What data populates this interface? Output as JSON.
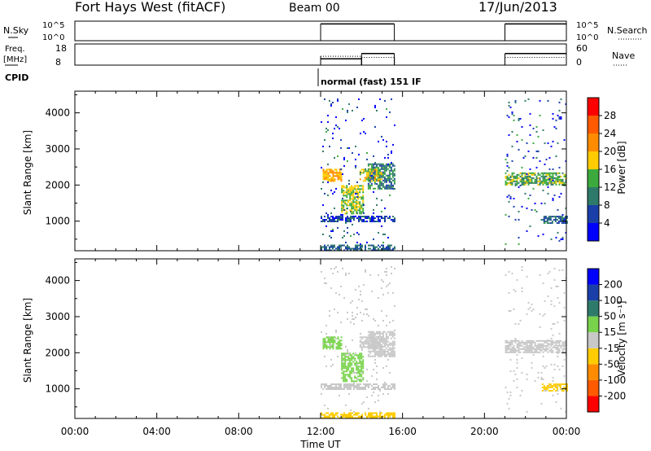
{
  "header": {
    "station": "Fort Hays West (fitACF)",
    "beam": "Beam 00",
    "date": "17/Jun/2013"
  },
  "aux": {
    "nsky_label": "N.Sky",
    "nsky_ticks": [
      "10^5",
      "10^0"
    ],
    "freq_label_1": "Freq.",
    "freq_label_2": "[MHz]",
    "freq_ticks": [
      "18",
      "8"
    ],
    "nave_ticks": [
      "60",
      "0"
    ],
    "nsearch_label": "N.Search",
    "nave_label": "Nave",
    "cpid_label": "CPID",
    "cpid_text": "normal (fast) 151 IF"
  },
  "colors": {
    "power": [
      "#0000ff",
      "#1a3fa8",
      "#2e7a6a",
      "#3caa3c",
      "#ffcc00",
      "#ff8c00",
      "#ff5a00",
      "#ff0000"
    ],
    "velocity": [
      "#ff0000",
      "#ff5a00",
      "#ff8c00",
      "#ffcc00",
      "#c8c8c8",
      "#78d24b",
      "#2e7a6a",
      "#1a3fa8",
      "#0000ff"
    ]
  },
  "chart_data": [
    {
      "type": "heatmap",
      "name": "power",
      "ylabel": "Slant Range [km]",
      "xlabel": "",
      "xlim": [
        0,
        24
      ],
      "ylim": [
        180,
        4600
      ],
      "yticks": [
        1000,
        2000,
        3000,
        4000
      ],
      "colorbar_label": "Power [dB]",
      "colorbar_ticks": [
        "4",
        "8",
        "12",
        "16",
        "20",
        "24",
        "28"
      ],
      "colorbar_range": [
        0,
        30
      ],
      "regions": [
        {
          "x": [
            12.0,
            15.6
          ],
          "y": [
            1000,
            1150
          ],
          "value": 6
        },
        {
          "x": [
            14.3,
            15.6
          ],
          "y": [
            1900,
            2600
          ],
          "value": 10
        },
        {
          "x": [
            12.1,
            13.0
          ],
          "y": [
            2100,
            2450
          ],
          "value": 20
        },
        {
          "x": [
            13.0,
            14.1
          ],
          "y": [
            1200,
            2000
          ],
          "value": 16
        },
        {
          "x": [
            13.9,
            15.0
          ],
          "y": [
            2100,
            2450
          ],
          "value": 18
        },
        {
          "x": [
            12.0,
            15.6
          ],
          "y": [
            200,
            350
          ],
          "value": 8
        },
        {
          "x": [
            21.0,
            24.0
          ],
          "y": [
            2000,
            2350
          ],
          "value": 14
        },
        {
          "x": [
            22.8,
            24.0
          ],
          "y": [
            950,
            1150
          ],
          "value": 8
        },
        {
          "x": [
            12.0,
            15.6
          ],
          "y": [
            350,
            4400
          ],
          "value": 5,
          "sparse": true
        },
        {
          "x": [
            21.0,
            24.0
          ],
          "y": [
            350,
            4400
          ],
          "value": 6,
          "sparse": true
        }
      ]
    },
    {
      "type": "heatmap",
      "name": "velocity",
      "ylabel": "Slant Range [km]",
      "xlabel": "Time UT",
      "xlim": [
        0,
        24
      ],
      "ylim": [
        180,
        4600
      ],
      "yticks": [
        1000,
        2000,
        3000,
        4000
      ],
      "xticks": [
        "00:00",
        "04:00",
        "08:00",
        "12:00",
        "16:00",
        "20:00",
        "00:00"
      ],
      "xtick_values": [
        0,
        4,
        8,
        12,
        16,
        20,
        24
      ],
      "colorbar_label": "Velocity [m s⁻¹]",
      "colorbar_ticks": [
        "-200",
        "-100",
        "-50",
        "-15",
        "15",
        "50",
        "100",
        "200"
      ],
      "regions": [
        {
          "x": [
            12.0,
            15.6
          ],
          "y": [
            1000,
            1150
          ],
          "value": 0
        },
        {
          "x": [
            14.3,
            15.6
          ],
          "y": [
            1900,
            2600
          ],
          "value": 0
        },
        {
          "x": [
            12.1,
            13.0
          ],
          "y": [
            2100,
            2450
          ],
          "value": 30
        },
        {
          "x": [
            13.0,
            14.1
          ],
          "y": [
            1200,
            2000
          ],
          "value": 25
        },
        {
          "x": [
            13.9,
            15.0
          ],
          "y": [
            2100,
            2450
          ],
          "value": 0
        },
        {
          "x": [
            12.0,
            15.6
          ],
          "y": [
            200,
            350
          ],
          "value": -40
        },
        {
          "x": [
            21.0,
            24.0
          ],
          "y": [
            2000,
            2350
          ],
          "value": 0
        },
        {
          "x": [
            22.8,
            24.0
          ],
          "y": [
            950,
            1150
          ],
          "value": -20
        },
        {
          "x": [
            12.0,
            15.6
          ],
          "y": [
            350,
            4400
          ],
          "value": 0,
          "sparse": true
        },
        {
          "x": [
            21.0,
            24.0
          ],
          "y": [
            350,
            4400
          ],
          "value": 0,
          "sparse": true
        }
      ]
    },
    {
      "type": "line",
      "name": "n_sky",
      "ylim": [
        0,
        5
      ],
      "segments": [
        {
          "x": [
            12.0,
            15.6
          ],
          "y": 4.3
        },
        {
          "x": [
            21.0,
            24.0
          ],
          "y": 4.3
        }
      ]
    },
    {
      "type": "line",
      "name": "frequency",
      "ylim": [
        8,
        18
      ],
      "segments": [
        {
          "x": [
            12.0,
            14.0
          ],
          "y": 11
        },
        {
          "x": [
            14.0,
            15.6
          ],
          "y": 13.5
        },
        {
          "x": [
            21.0,
            24.0
          ],
          "y": 13.5
        }
      ]
    },
    {
      "type": "line",
      "name": "nave",
      "ylim": [
        0,
        60
      ],
      "segments": [
        {
          "x": [
            12.0,
            14.0
          ],
          "y": 25
        },
        {
          "x": [
            14.0,
            15.6
          ],
          "y": 22
        },
        {
          "x": [
            21.0,
            24.0
          ],
          "y": 22
        }
      ]
    }
  ]
}
